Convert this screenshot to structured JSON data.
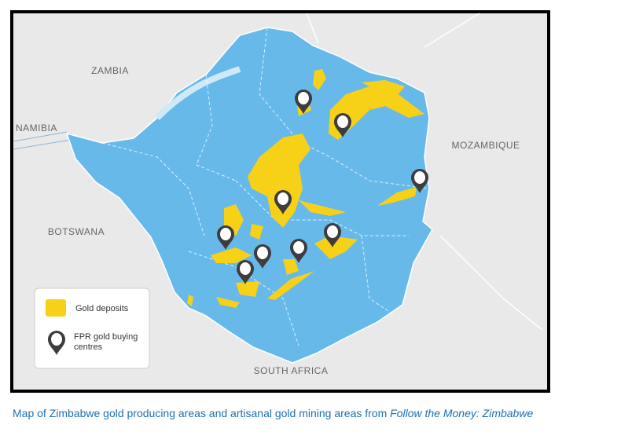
{
  "map": {
    "countries": [
      "ZAMBIA",
      "NAMIBIA",
      "MOZAMBIQUE",
      "BOTSWANA",
      "SOUTH AFRICA"
    ]
  },
  "legend": {
    "items": [
      "Gold deposits",
      "FPR gold buying centres"
    ]
  },
  "caption": {
    "text": "Map of Zimbabwe gold producing areas and artisanal gold mining areas from",
    "source": "Follow the Money: Zimbabwe"
  }
}
